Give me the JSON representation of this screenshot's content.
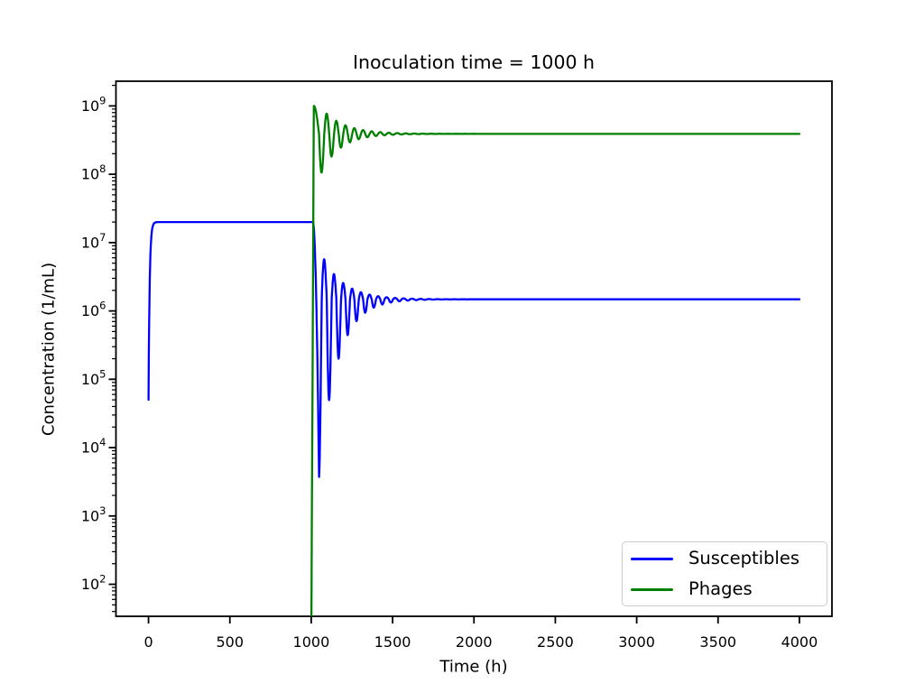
{
  "chart_data": {
    "type": "line",
    "title": "Inoculation time = 1000 h",
    "xlabel": "Time (h)",
    "ylabel": "Concentration (1/mL)",
    "yscale": "log",
    "grid": false,
    "x_ticks": [
      0,
      500,
      1000,
      1500,
      2000,
      2500,
      3000,
      3500,
      4000
    ],
    "y_tick_exponents": [
      2,
      3,
      4,
      5,
      6,
      7,
      8,
      9
    ],
    "y_tick_base": 10,
    "xlim": [
      -200,
      4200
    ],
    "ylim": [
      34,
      2300000000
    ],
    "legend": {
      "position": "lower right",
      "entries": [
        {
          "label": "Susceptibles",
          "color": "#0000ff"
        },
        {
          "label": "Phages",
          "color": "#008000"
        }
      ]
    },
    "series": [
      {
        "name": "Susceptibles",
        "color": "#0000ff",
        "line_width": 2.3,
        "key_points": {
          "initial": {
            "t": 0,
            "value": 50000
          },
          "plateau": {
            "t_start": 30,
            "t_end": 1010,
            "value": 20000000
          },
          "crash_trough": {
            "t": 1048,
            "value": 3700
          },
          "rebound_peak": {
            "t": 1080,
            "value": 7500000
          },
          "steady_state": {
            "after_t": 1800,
            "value": 1500000
          }
        },
        "model": {
          "rise": {
            "to_log": 7.301,
            "drop_log": 2.601,
            "tau": 7
          },
          "collapse": {
            "t_start": 1010,
            "t_end": 1048,
            "from_log": 7.301,
            "fall_log": 3.731
          },
          "steady_log": 6.17,
          "osc": {
            "t0": 1048,
            "shape": "trough-first-cos",
            "period_base": 52,
            "period_extra": 14,
            "period_decay": 110,
            "amp_up": 0.75,
            "decay_up": 130,
            "amp_down": 2.6,
            "decay_down": 110
          }
        }
      },
      {
        "name": "Phages",
        "color": "#008000",
        "line_width": 2.3,
        "key_points": {
          "appears_at_t": 1000,
          "enters_from_below_axis": true,
          "spike_peak": {
            "t": 1016,
            "value": 1000000000
          },
          "first_trough": {
            "t": 1064,
            "value": 106000000
          },
          "second_peak": {
            "t": 1098,
            "value": 770000000
          },
          "steady_state": {
            "after_t": 1800,
            "value": 390000000
          }
        },
        "model": {
          "rise": {
            "t_start": 1000,
            "t_end": 1016,
            "from_log": 1.0,
            "to_log": 9.0
          },
          "settle": {
            "t_end": 1048,
            "amp_log": 0.409
          },
          "steady_log": 8.591,
          "osc": {
            "t0": 1048,
            "shape": "neg-sin-lag",
            "period_base": 52,
            "period_extra": 14,
            "period_decay": 110,
            "amp_up": 0.42,
            "decay_up": 135,
            "amp_down": 0.65,
            "decay_down": 115
          }
        }
      }
    ]
  },
  "axes_style": {
    "spine_color": "#000000",
    "tick_color": "#000000",
    "major_tick_len": 8,
    "minor_tick_len": 4.5
  }
}
